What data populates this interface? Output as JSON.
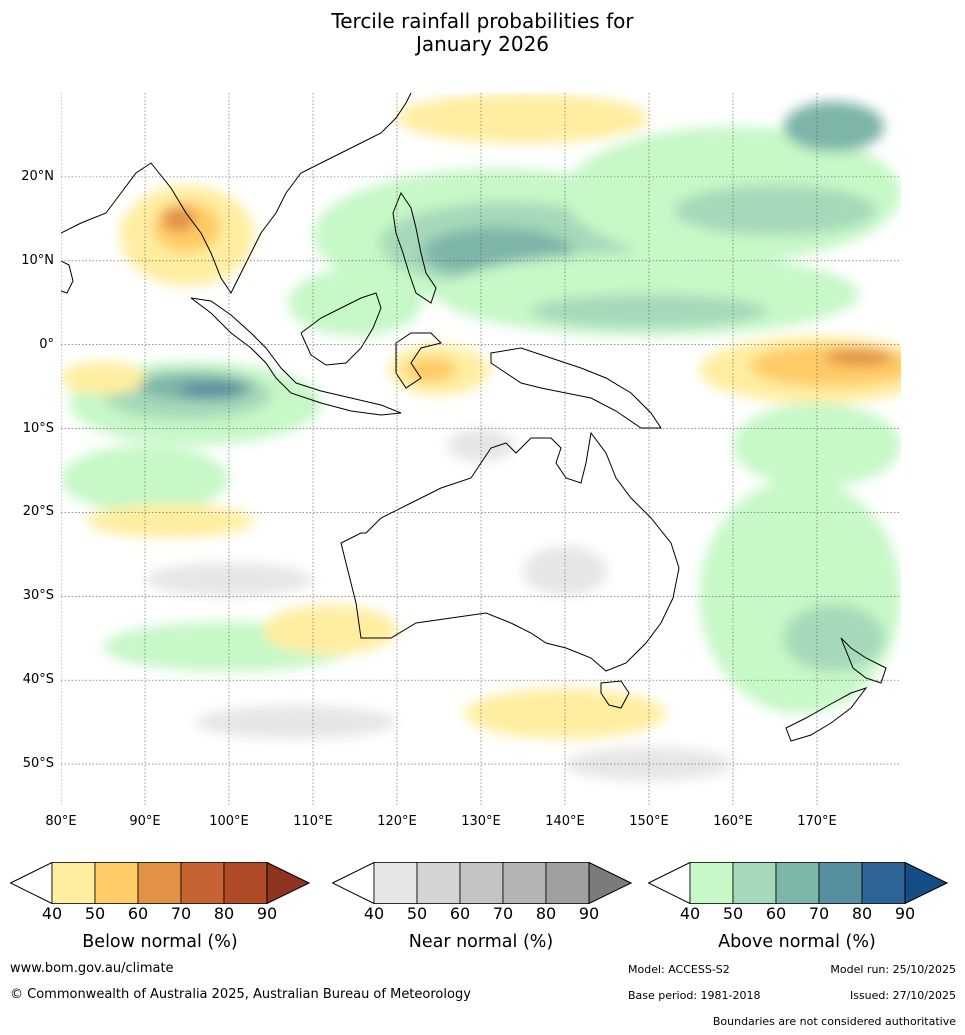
{
  "title": {
    "line1": "Tercile rainfall probabilities for",
    "line2": "January 2026"
  },
  "map": {
    "lon_range": [
      80,
      180
    ],
    "lat_range": [
      -55,
      30
    ],
    "lat_labels": [
      {
        "value": 20,
        "text": "20°N"
      },
      {
        "value": 10,
        "text": "10°N"
      },
      {
        "value": 0,
        "text": "0°"
      },
      {
        "value": -10,
        "text": "10°S"
      },
      {
        "value": -20,
        "text": "20°S"
      },
      {
        "value": -30,
        "text": "30°S"
      },
      {
        "value": -40,
        "text": "40°S"
      },
      {
        "value": -50,
        "text": "50°S"
      }
    ],
    "lon_labels": [
      {
        "value": 80,
        "text": "80°E"
      },
      {
        "value": 90,
        "text": "90°E"
      },
      {
        "value": 100,
        "text": "100°E"
      },
      {
        "value": 110,
        "text": "110°E"
      },
      {
        "value": 120,
        "text": "120°E"
      },
      {
        "value": 130,
        "text": "130°E"
      },
      {
        "value": 140,
        "text": "140°E"
      },
      {
        "value": 150,
        "text": "150°E"
      },
      {
        "value": 160,
        "text": "160°E"
      },
      {
        "value": 170,
        "text": "170°E"
      }
    ],
    "regions": [
      {
        "cat": "above",
        "level": 1,
        "lon": 132,
        "lat": 13,
        "rlon": 22,
        "rlat": 8
      },
      {
        "cat": "above",
        "level": 2,
        "lon": 133,
        "lat": 12,
        "rlon": 15,
        "rlat": 5
      },
      {
        "cat": "above",
        "level": 3,
        "lon": 132,
        "lat": 11,
        "rlon": 9,
        "rlat": 3
      },
      {
        "cat": "above",
        "level": 1,
        "lon": 160,
        "lat": 18,
        "rlon": 20,
        "rlat": 8
      },
      {
        "cat": "above",
        "level": 2,
        "lon": 165,
        "lat": 16,
        "rlon": 12,
        "rlat": 3
      },
      {
        "cat": "above",
        "level": 3,
        "lon": 172,
        "lat": 26,
        "rlon": 6,
        "rlat": 3
      },
      {
        "cat": "above",
        "level": 1,
        "lon": 150,
        "lat": 6,
        "rlon": 25,
        "rlat": 5
      },
      {
        "cat": "above",
        "level": 2,
        "lon": 150,
        "lat": 4,
        "rlon": 14,
        "rlat": 2
      },
      {
        "cat": "above",
        "level": 1,
        "lon": 96,
        "lat": -7,
        "rlon": 15,
        "rlat": 5
      },
      {
        "cat": "above",
        "level": 2,
        "lon": 95,
        "lat": -6,
        "rlon": 10,
        "rlat": 3
      },
      {
        "cat": "above",
        "level": 3,
        "lon": 96,
        "lat": -5,
        "rlon": 7,
        "rlat": 1.6
      },
      {
        "cat": "above",
        "level": 4,
        "lon": 98,
        "lat": -5.5,
        "rlon": 4,
        "rlat": 1
      },
      {
        "cat": "above",
        "level": 1,
        "lon": 168,
        "lat": -30,
        "rlon": 12,
        "rlat": 14
      },
      {
        "cat": "above",
        "level": 2,
        "lon": 172,
        "lat": -35,
        "rlon": 6,
        "rlat": 4
      },
      {
        "cat": "above",
        "level": 1,
        "lon": 170,
        "lat": -12,
        "rlon": 10,
        "rlat": 5
      },
      {
        "cat": "above",
        "level": 1,
        "lon": 115,
        "lat": 5,
        "rlon": 8,
        "rlat": 4
      },
      {
        "cat": "above",
        "level": 1,
        "lon": 90,
        "lat": -16,
        "rlon": 10,
        "rlat": 4
      },
      {
        "cat": "above",
        "level": 1,
        "lon": 100,
        "lat": -36,
        "rlon": 15,
        "rlat": 3
      },
      {
        "cat": "below",
        "level": 1,
        "lon": 170,
        "lat": -3,
        "rlon": 14,
        "rlat": 4
      },
      {
        "cat": "below",
        "level": 2,
        "lon": 172,
        "lat": -2.5,
        "rlon": 10,
        "rlat": 2.5
      },
      {
        "cat": "below",
        "level": 3,
        "lon": 175,
        "lat": -1.5,
        "rlon": 4,
        "rlat": 1
      },
      {
        "cat": "below",
        "level": 1,
        "lon": 95,
        "lat": 13,
        "rlon": 8,
        "rlat": 6
      },
      {
        "cat": "below",
        "level": 2,
        "lon": 95,
        "lat": 14,
        "rlon": 4,
        "rlat": 3
      },
      {
        "cat": "below",
        "level": 3,
        "lon": 94,
        "lat": 15,
        "rlon": 2,
        "rlat": 1.5
      },
      {
        "cat": "below",
        "level": 1,
        "lon": 135,
        "lat": 27,
        "rlon": 15,
        "rlat": 3
      },
      {
        "cat": "below",
        "level": 1,
        "lon": 125,
        "lat": -3,
        "rlon": 6,
        "rlat": 3
      },
      {
        "cat": "below",
        "level": 2,
        "lon": 124,
        "lat": -3,
        "rlon": 3,
        "rlat": 1.5
      },
      {
        "cat": "below",
        "level": 1,
        "lon": 93,
        "lat": -21,
        "rlon": 10,
        "rlat": 2
      },
      {
        "cat": "below",
        "level": 1,
        "lon": 140,
        "lat": -44,
        "rlon": 12,
        "rlat": 3
      },
      {
        "cat": "below",
        "level": 1,
        "lon": 112,
        "lat": -34,
        "rlon": 8,
        "rlat": 3
      },
      {
        "cat": "below",
        "level": 1,
        "lon": 85,
        "lat": -4,
        "rlon": 5,
        "rlat": 2
      },
      {
        "cat": "near",
        "level": 1,
        "lon": 140,
        "lat": -27,
        "rlon": 5,
        "rlat": 3
      },
      {
        "cat": "near",
        "level": 1,
        "lon": 108,
        "lat": -45,
        "rlon": 12,
        "rlat": 2
      },
      {
        "cat": "near",
        "level": 1,
        "lon": 100,
        "lat": -28,
        "rlon": 10,
        "rlat": 2
      },
      {
        "cat": "near",
        "level": 1,
        "lon": 150,
        "lat": -50,
        "rlon": 10,
        "rlat": 2
      },
      {
        "cat": "near",
        "level": 1,
        "lon": 130,
        "lat": -12,
        "rlon": 4,
        "rlat": 2
      }
    ]
  },
  "legends": [
    {
      "key": "below",
      "title": "Below normal (%)",
      "ticks": [
        "40",
        "50",
        "60",
        "70",
        "80",
        "90"
      ],
      "colors": [
        "#ffeea0",
        "#fecb66",
        "#e19246",
        "#c76232",
        "#b04a26"
      ],
      "extend_color": "#8e3420"
    },
    {
      "key": "near",
      "title": "Near normal (%)",
      "ticks": [
        "40",
        "50",
        "60",
        "70",
        "80",
        "90"
      ],
      "colors": [
        "#e6e6e6",
        "#d4d4d4",
        "#c4c4c4",
        "#b4b4b4",
        "#a0a0a0"
      ],
      "extend_color": "#7b7b7b"
    },
    {
      "key": "above",
      "title": "Above normal (%)",
      "ticks": [
        "40",
        "50",
        "60",
        "70",
        "80",
        "90"
      ],
      "colors": [
        "#c6f8c8",
        "#a6d9b9",
        "#7eb5a9",
        "#588f9e",
        "#2e6596"
      ],
      "extend_color": "#144c85"
    }
  ],
  "footer": {
    "website": "www.bom.gov.au/climate",
    "copyright": "© Commonwealth of Australia 2025, Australian Bureau of Meteorology",
    "model": "Model: ACCESS-S2",
    "model_run": "Model run: 25/10/2025",
    "base_period": "Base period: 1981-2018",
    "issued": "Issued: 27/10/2025",
    "disclaimer": "Boundaries are not considered authoritative"
  }
}
